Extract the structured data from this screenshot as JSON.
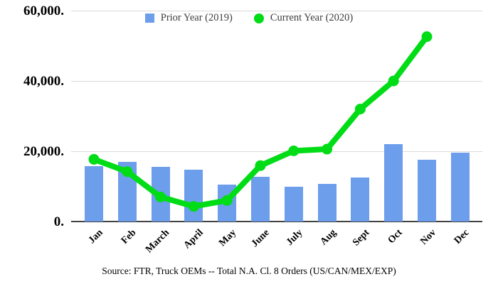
{
  "legend": {
    "items": [
      {
        "label": "Prior Year (2019)",
        "swatch": "square",
        "color": "#6d9eeb"
      },
      {
        "label": "Current Year (2020)",
        "swatch": "circle",
        "color": "#00dc16"
      }
    ]
  },
  "y_axis": {
    "tick_values": [
      0,
      20000,
      40000,
      60000
    ],
    "tick_labels": [
      "0.",
      "20,000.",
      "40,000.",
      "60,000."
    ]
  },
  "source_note": "Source: FTR, Truck OEMs -- Total N.A. Cl. 8 Orders (US/CAN/MEX/EXP)",
  "chart_data": {
    "type": "bar",
    "subtype": "combo-bar-line",
    "title": "",
    "xlabel": "",
    "ylabel": "",
    "ylim": [
      0,
      60000
    ],
    "grid": true,
    "legend_position": "top",
    "categories": [
      "Jan",
      "Feb",
      "March",
      "April",
      "May",
      "June",
      "July",
      "Aug",
      "Sept",
      "Oct",
      "Nov",
      "Dec"
    ],
    "series": [
      {
        "name": "Prior Year (2019)",
        "type": "bar",
        "color": "#6d9eeb",
        "values": [
          15700,
          17000,
          15500,
          14700,
          10600,
          12700,
          10000,
          10700,
          12500,
          22000,
          17500,
          19500
        ]
      },
      {
        "name": "Current Year (2020)",
        "type": "line",
        "color": "#00dc16",
        "values": [
          17700,
          14200,
          7000,
          4300,
          6000,
          15900,
          20100,
          20600,
          32000,
          40000,
          52600
        ]
      }
    ]
  }
}
